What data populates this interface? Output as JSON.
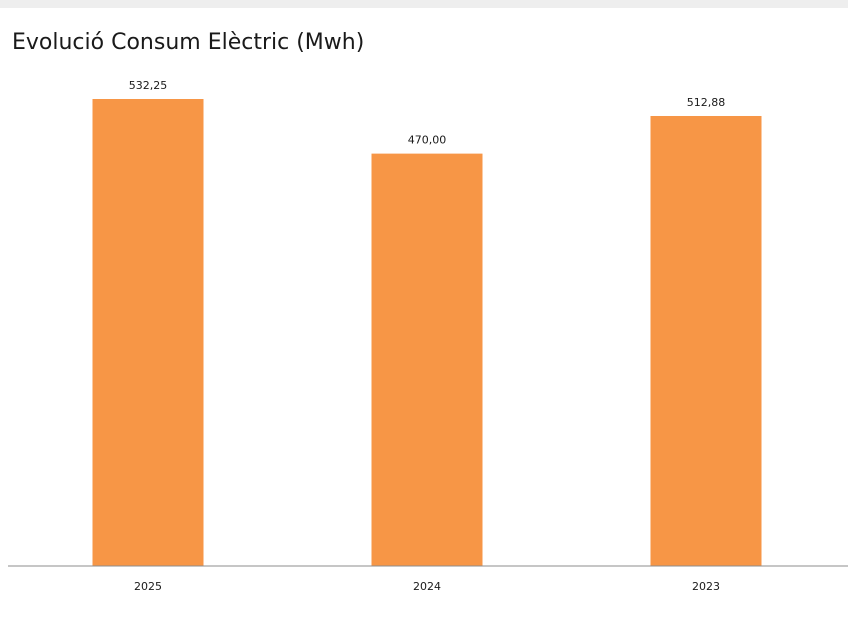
{
  "chart_data": {
    "type": "bar",
    "title": "Evolució Consum Elèctric (Mwh)",
    "categories": [
      "2025",
      "2024",
      "2023"
    ],
    "values": [
      532.25,
      470.0,
      512.88
    ],
    "value_labels": [
      "532,25",
      "470,00",
      "512,88"
    ],
    "xlabel": "",
    "ylabel": "",
    "ylim": [
      0,
      550
    ],
    "grid": false,
    "legend": "none",
    "bar_color": "#f79646",
    "axis_color": "#8c8c8c"
  }
}
